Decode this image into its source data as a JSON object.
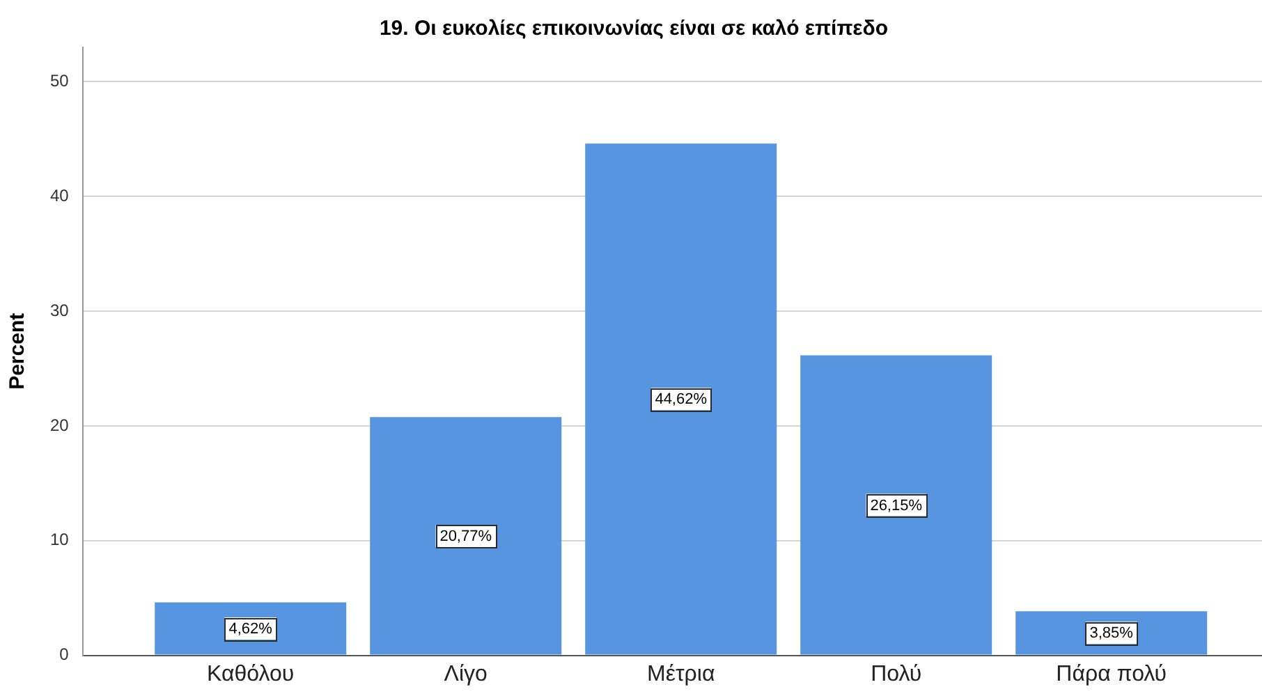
{
  "chart_data": {
    "type": "bar",
    "title": "19. Οι ευκολίες επικοινωνίας είναι σε καλό επίπεδο",
    "ylabel": "Percent",
    "categories": [
      "Καθόλου",
      "Λίγο",
      "Μέτρια",
      "Πολύ",
      "Πάρα πολύ"
    ],
    "values": [
      4.62,
      20.77,
      44.62,
      26.15,
      3.85
    ],
    "value_labels": [
      "4,62%",
      "20,77%",
      "44,62%",
      "26,15%",
      "3,85%"
    ],
    "color": "#5795e0",
    "ylim": [
      0,
      53
    ],
    "yticks": [
      0,
      10,
      20,
      30,
      40,
      50
    ],
    "grid": "y"
  }
}
